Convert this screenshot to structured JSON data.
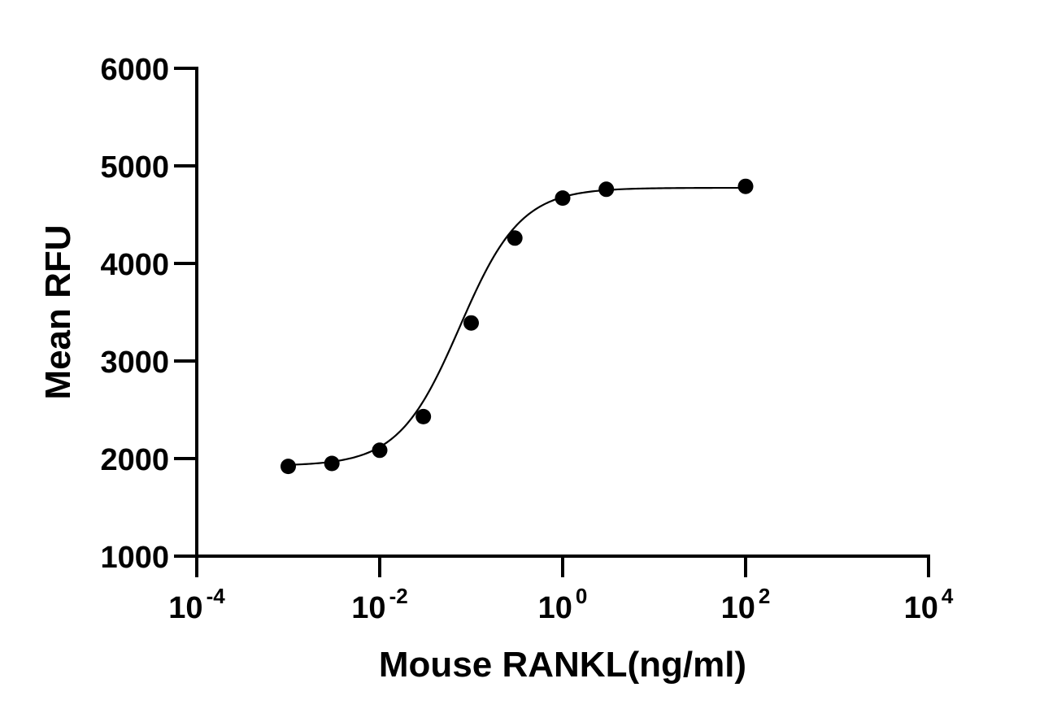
{
  "chart_data": {
    "type": "scatter",
    "title": "",
    "xlabel": "Mouse RANKL(ng/ml)",
    "ylabel": "Mean RFU",
    "x_scale": "log10",
    "xlim": [
      0.0001,
      10000
    ],
    "ylim": [
      1000,
      6000
    ],
    "x_ticks": [
      {
        "base": "10",
        "exp": "-4",
        "value": 0.0001
      },
      {
        "base": "10",
        "exp": "-2",
        "value": 0.01
      },
      {
        "base": "10",
        "exp": "0",
        "value": 1
      },
      {
        "base": "10",
        "exp": "2",
        "value": 100
      },
      {
        "base": "10",
        "exp": "4",
        "value": 10000
      }
    ],
    "y_ticks": [
      "1000",
      "2000",
      "3000",
      "4000",
      "5000",
      "6000"
    ],
    "grid": false,
    "legend": "none",
    "colors": {
      "points": "#000000",
      "curve": "#000000",
      "axes": "#000000"
    },
    "series": [
      {
        "x": [
          0.001,
          0.003,
          0.01,
          0.03,
          0.1,
          0.3,
          1,
          3,
          100
        ],
        "y": [
          1920,
          1950,
          2085,
          2430,
          3390,
          4260,
          4670,
          4760,
          4790
        ]
      }
    ],
    "fit": {
      "type": "4PL",
      "bottom": 1925,
      "top": 4775,
      "ec50": 0.075,
      "hill": 1.3,
      "x_range": [
        0.001,
        100
      ]
    }
  }
}
